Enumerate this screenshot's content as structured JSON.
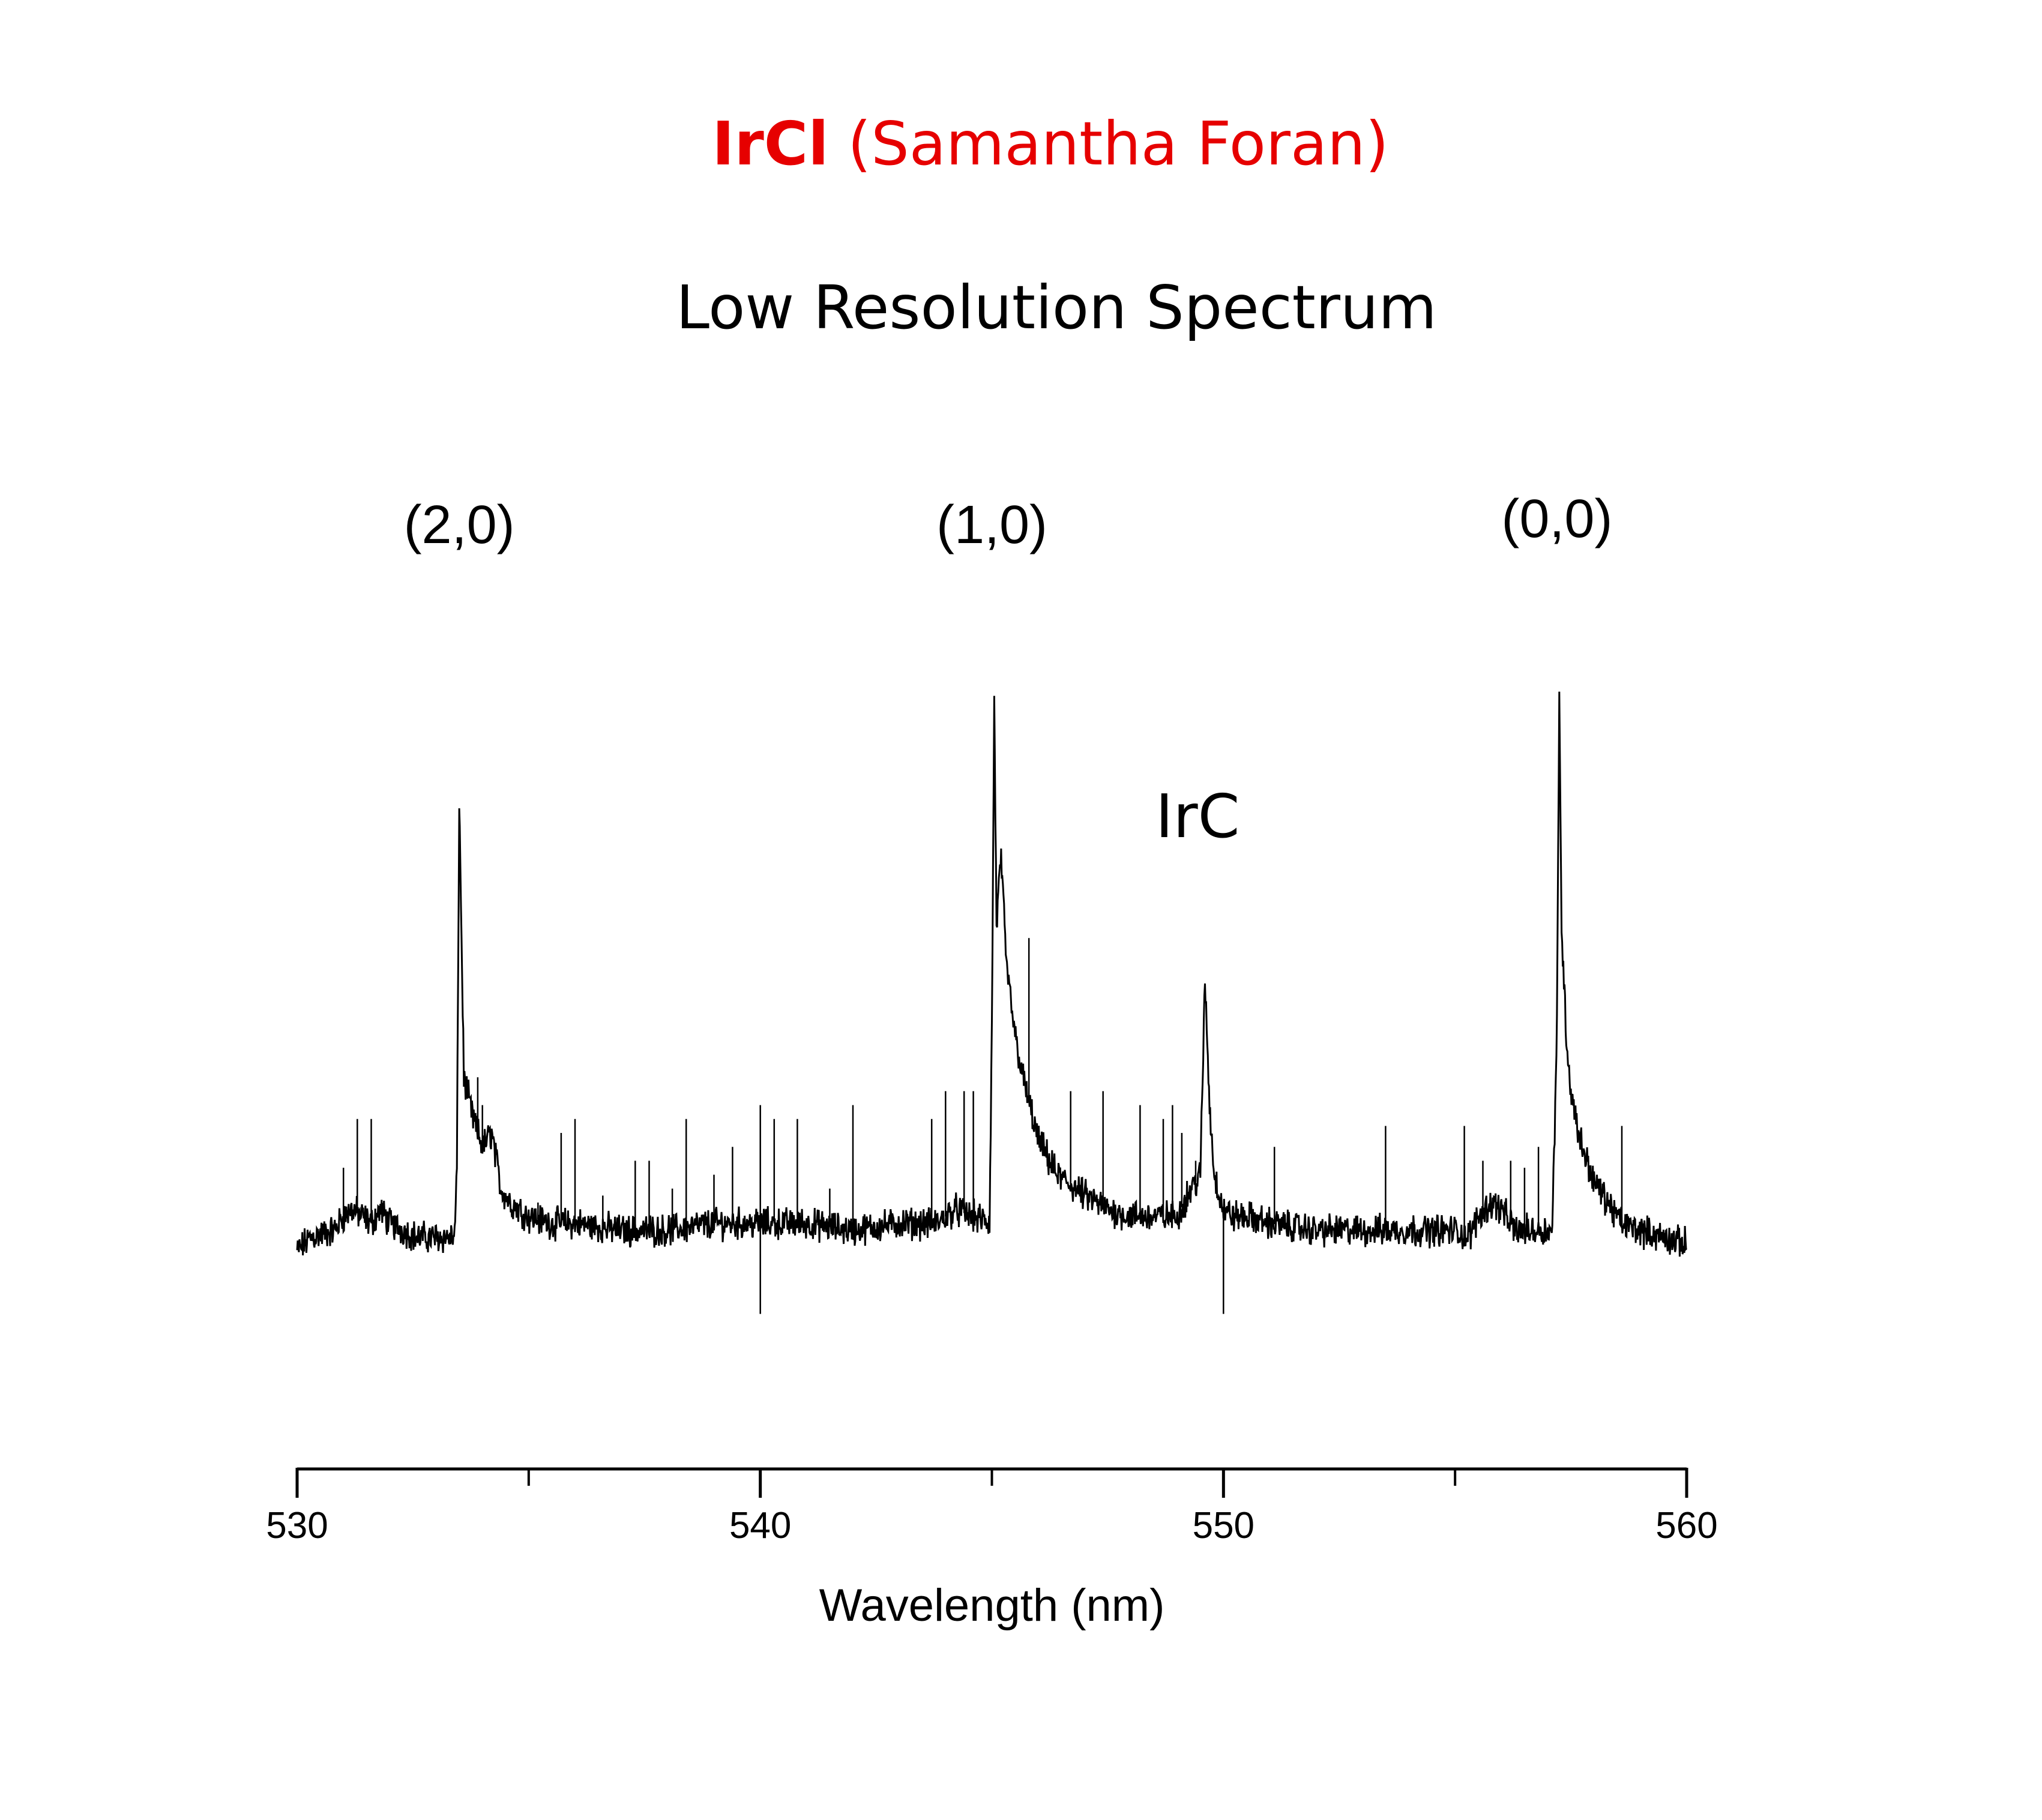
{
  "header": {
    "title_bold": "IrCl",
    "title_rest": "(Samantha Foran)",
    "subtitle": "Low Resolution Spectrum",
    "title_color": "#e60000"
  },
  "chart_data": {
    "type": "line",
    "title": "IrCl (Samantha Foran)",
    "subtitle": "Low Resolution Spectrum",
    "xlabel": "Wavelength (nm)",
    "ylabel": "",
    "xlim": [
      530,
      560
    ],
    "ylim": [
      0,
      1
    ],
    "x_ticks": [
      530,
      540,
      550,
      560
    ],
    "x_minor_ticks": [
      535,
      545,
      555
    ],
    "y_axis_shown": false,
    "grid": false,
    "line_color": "#000000",
    "series": [
      {
        "x": [
          530.0,
          530.3,
          530.8,
          531.0,
          531.2,
          531.4,
          531.6,
          531.8,
          532.0,
          532.3,
          532.6,
          533.0,
          533.4,
          533.45,
          533.5,
          533.6,
          533.8,
          534.0,
          534.2,
          534.4,
          534.6,
          535.0,
          535.5,
          536.0,
          537.0,
          538.0,
          539.0,
          540.0,
          541.0,
          542.0,
          543.0,
          543.8,
          544.2,
          544.6,
          544.95,
          545.0,
          545.05,
          545.1,
          545.2,
          545.3,
          545.5,
          545.7,
          546.0,
          546.4,
          547.0,
          547.5,
          548.0,
          548.5,
          549.0,
          549.3,
          549.5,
          549.6,
          549.7,
          549.8,
          550.0,
          550.2,
          550.5,
          551.0,
          552.0,
          553.0,
          554.0,
          555.0,
          555.3,
          555.5,
          555.8,
          556.0,
          556.3,
          556.6,
          557.0,
          557.1,
          557.2,
          557.25,
          557.3,
          557.4,
          557.5,
          557.7,
          558.0,
          558.3,
          558.6,
          559.0,
          559.5,
          560.0
        ],
        "y": [
          0.03,
          0.05,
          0.06,
          0.08,
          0.09,
          0.08,
          0.07,
          0.09,
          0.07,
          0.06,
          0.05,
          0.05,
          0.05,
          0.15,
          0.68,
          0.28,
          0.22,
          0.18,
          0.2,
          0.12,
          0.1,
          0.08,
          0.07,
          0.07,
          0.06,
          0.06,
          0.07,
          0.07,
          0.07,
          0.06,
          0.07,
          0.07,
          0.09,
          0.08,
          0.07,
          0.35,
          0.82,
          0.5,
          0.6,
          0.45,
          0.34,
          0.27,
          0.19,
          0.14,
          0.11,
          0.09,
          0.08,
          0.08,
          0.08,
          0.12,
          0.14,
          0.42,
          0.24,
          0.14,
          0.09,
          0.08,
          0.08,
          0.07,
          0.06,
          0.06,
          0.06,
          0.06,
          0.05,
          0.08,
          0.1,
          0.09,
          0.06,
          0.06,
          0.06,
          0.06,
          0.36,
          0.82,
          0.5,
          0.34,
          0.26,
          0.19,
          0.13,
          0.1,
          0.07,
          0.06,
          0.05,
          0.04
        ]
      }
    ],
    "annotations": [
      {
        "text": "(2,0)",
        "x": 533.5
      },
      {
        "text": "(1,0)",
        "x": 545.0
      },
      {
        "text": "(0,0)",
        "x": 557.2
      },
      {
        "text": "IrC",
        "x": 549.7
      }
    ]
  }
}
